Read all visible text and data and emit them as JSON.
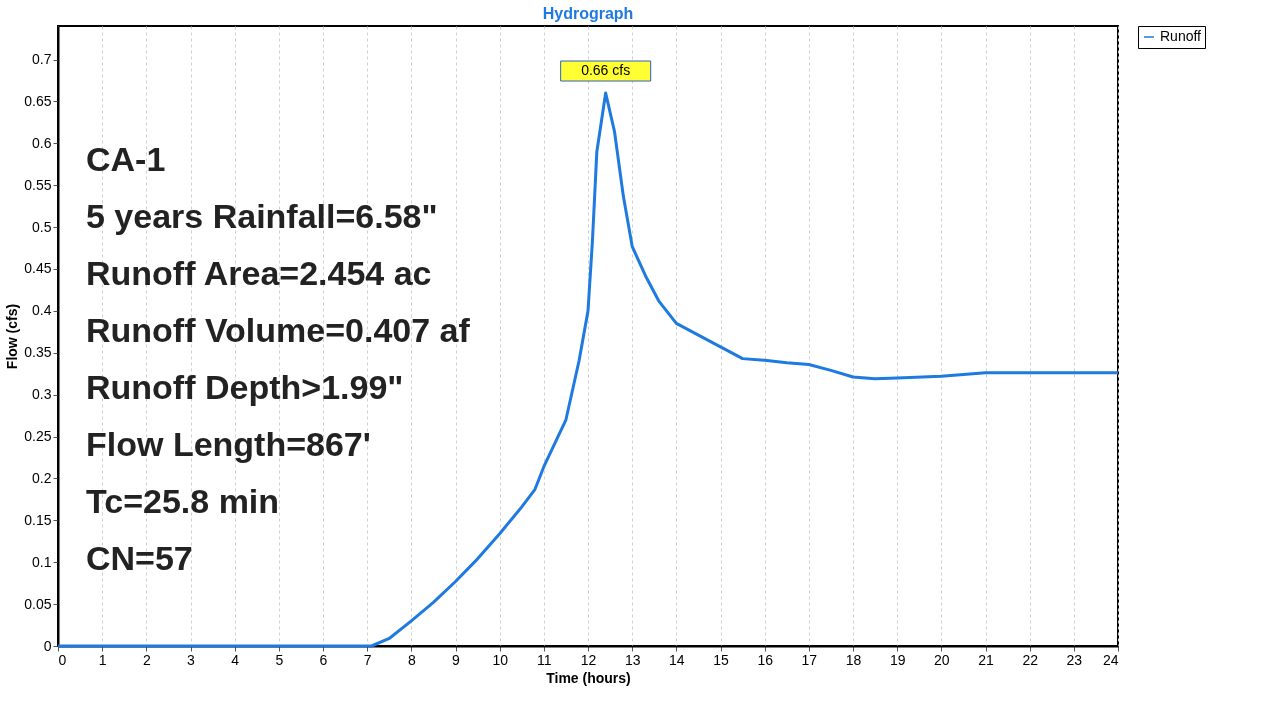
{
  "chart_data": {
    "type": "line",
    "title": "Hydrograph",
    "xlabel": "Time (hours)",
    "ylabel": "Flow (cfs)",
    "xlim": [
      0,
      24
    ],
    "ylim": [
      0,
      0.74
    ],
    "xticks": [
      0,
      1,
      2,
      3,
      4,
      5,
      6,
      7,
      8,
      9,
      10,
      11,
      12,
      13,
      14,
      15,
      16,
      17,
      18,
      19,
      20,
      21,
      22,
      23,
      24
    ],
    "yticks": [
      0,
      0.05,
      0.1,
      0.15,
      0.2,
      0.25,
      0.3,
      0.35,
      0.4,
      0.45,
      0.5,
      0.55,
      0.6,
      0.65,
      0.7
    ],
    "grid": "x",
    "legend": "right",
    "marker": "none",
    "line_style": "solid",
    "series": [
      {
        "name": "Runoff",
        "color": "#1f7ae0",
        "x": [
          0,
          7.0,
          7.1,
          7.5,
          8,
          8.5,
          9,
          9.5,
          10,
          10.5,
          10.8,
          11,
          11.5,
          11.8,
          12,
          12.1,
          12.2,
          12.4,
          12.6,
          12.8,
          13,
          13.3,
          13.6,
          14,
          14.5,
          15,
          15.5,
          16,
          16.5,
          17,
          17.5,
          18,
          18.5,
          19,
          20,
          21,
          22,
          23,
          24
        ],
        "values": [
          0,
          0,
          0,
          0.009,
          0.03,
          0.052,
          0.077,
          0.104,
          0.134,
          0.166,
          0.187,
          0.214,
          0.27,
          0.341,
          0.4,
          0.483,
          0.59,
          0.66,
          0.614,
          0.537,
          0.477,
          0.442,
          0.412,
          0.385,
          0.371,
          0.357,
          0.343,
          0.341,
          0.338,
          0.336,
          0.329,
          0.321,
          0.319,
          0.32,
          0.322,
          0.326,
          0.326,
          0.326,
          0.326
        ]
      }
    ],
    "annotations": [
      {
        "text": "0.66 cfs",
        "x": 12.4,
        "y": 0.66
      },
      "CA-1",
      "5 years Rainfall=6.58\"",
      "Runoff Area=2.454 ac",
      "Runoff Volume=0.407 af",
      "Runoff Depth>1.99\"",
      "Flow Length=867'",
      "Tc=25.8 min",
      "CN=57"
    ]
  }
}
